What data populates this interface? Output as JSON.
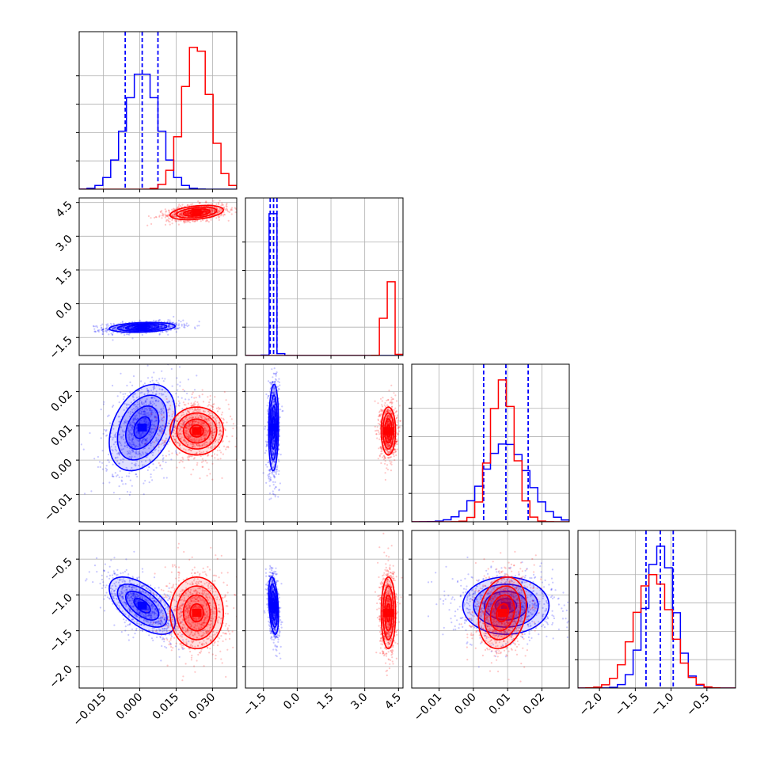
{
  "colors": {
    "series_a": "#0000ff",
    "series_b": "#ff0000",
    "grid": "#b0b0b0",
    "axes": "#000000"
  },
  "chart_data": {
    "type": "corner",
    "dimensions": 4,
    "ranges": [
      [
        -0.025,
        0.04
      ],
      [
        -2.3,
        4.7
      ],
      [
        -0.018,
        0.028
      ],
      [
        -2.3,
        -0.1
      ]
    ],
    "ticks": [
      {
        "values": [
          -0.015,
          0.0,
          0.015,
          0.03
        ],
        "labels": [
          "−0.015",
          "0.000",
          "0.015",
          "0.030"
        ]
      },
      {
        "values": [
          -1.5,
          0.0,
          1.5,
          3.0,
          4.5
        ],
        "labels": [
          "−1.5",
          "0.0",
          "1.5",
          "3.0",
          "4.5"
        ]
      },
      {
        "values": [
          -0.01,
          0.0,
          0.01,
          0.02
        ],
        "labels": [
          "−0.01",
          "0.00",
          "0.01",
          "0.02"
        ]
      },
      {
        "values": [
          -2.0,
          -1.5,
          -1.0,
          -0.5
        ],
        "labels": [
          "−2.0",
          "−1.5",
          "−1.0",
          "−0.5"
        ]
      }
    ],
    "grid": true,
    "series": [
      {
        "color_key": "series_a",
        "means": [
          0.001,
          -1.05,
          0.0095,
          -1.15
        ],
        "sds": [
          0.0068,
          0.11,
          0.0063,
          0.2
        ],
        "correlations": [
          [
            1,
            0.25,
            0.35,
            -0.6
          ],
          [
            0.25,
            1,
            0.1,
            -0.35
          ],
          [
            0.35,
            0.1,
            1,
            0.0
          ],
          [
            -0.6,
            -0.35,
            0.0,
            1
          ]
        ],
        "quantiles": [
          [
            -0.006,
            0.001,
            0.0075
          ],
          [
            -1.2,
            -1.05,
            -0.9
          ],
          [
            0.003,
            0.0095,
            0.016
          ],
          [
            -1.35,
            -1.15,
            -0.97
          ]
        ]
      },
      {
        "color_key": "series_b",
        "means": [
          0.0235,
          4.05,
          0.0085,
          -1.25
        ],
        "sds": [
          0.0055,
          0.16,
          0.0035,
          0.25
        ],
        "correlations": [
          [
            1,
            0.35,
            0.0,
            0.0
          ],
          [
            0.35,
            1,
            0.0,
            0.0
          ],
          [
            0.0,
            0.0,
            1,
            0.2
          ],
          [
            0.0,
            0.0,
            0.2,
            1
          ]
        ],
        "quantiles": null
      }
    ],
    "contour_levels_sigma": [
      0.5,
      1.0,
      1.5,
      2.0
    ]
  }
}
